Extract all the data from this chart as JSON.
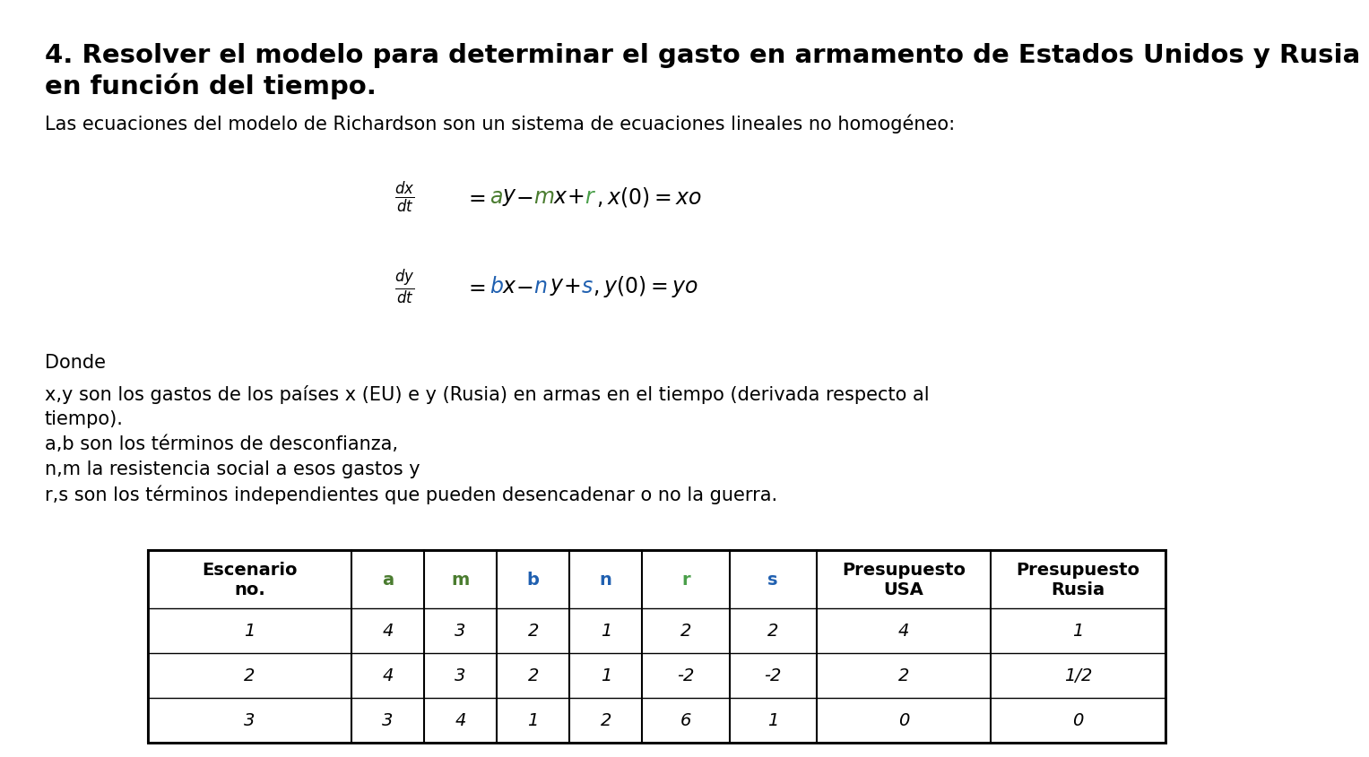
{
  "title_line1": "4. Resolver el modelo para determinar el gasto en armamento de Estados Unidos y Rusia",
  "title_line2": "en función del tiempo.",
  "intro_text": "Las ecuaciones del modelo de Richardson son un sistema de ecuaciones lineales no homogéneo:",
  "donde_text": "Donde",
  "description_lines": [
    "x,y son los gastos de los países x (EU) e y (Rusia) en armas en el tiempo (derivada respecto al",
    "tiempo).",
    "a,b son los términos de desconfianza,",
    "n,m la resistencia social a esos gastos y",
    "r,s son los términos independientes que pueden desencadenar o no la guerra."
  ],
  "eq1_color_a": "#4a7c2f",
  "eq1_color_m": "#4a7c2f",
  "eq1_color_r": "#4a9f4a",
  "eq2_color_b": "#2060b0",
  "eq2_color_n": "#2060b0",
  "eq2_color_s": "#2060b0",
  "table_headers": [
    "Escenario\nno.",
    "a",
    "m",
    "b",
    "n",
    "r",
    "s",
    "Presupuesto\nUSA",
    "Presupuesto\nRusia"
  ],
  "table_header_colors": [
    "black",
    "#4a7c2f",
    "#4a7c2f",
    "#2060b0",
    "#2060b0",
    "#4a9f4a",
    "#2060b0",
    "black",
    "black"
  ],
  "table_data": [
    [
      "1",
      "4",
      "3",
      "2",
      "1",
      "2",
      "2",
      "4",
      "1"
    ],
    [
      "2",
      "4",
      "3",
      "2",
      "1",
      "-2",
      "-2",
      "2",
      "1/2"
    ],
    [
      "3",
      "3",
      "4",
      "1",
      "2",
      "6",
      "1",
      "0",
      "0"
    ]
  ],
  "bg_color": "#ffffff",
  "title_fontsize": 21,
  "body_fontsize": 15,
  "table_fontsize": 14,
  "eq_fontsize": 17
}
